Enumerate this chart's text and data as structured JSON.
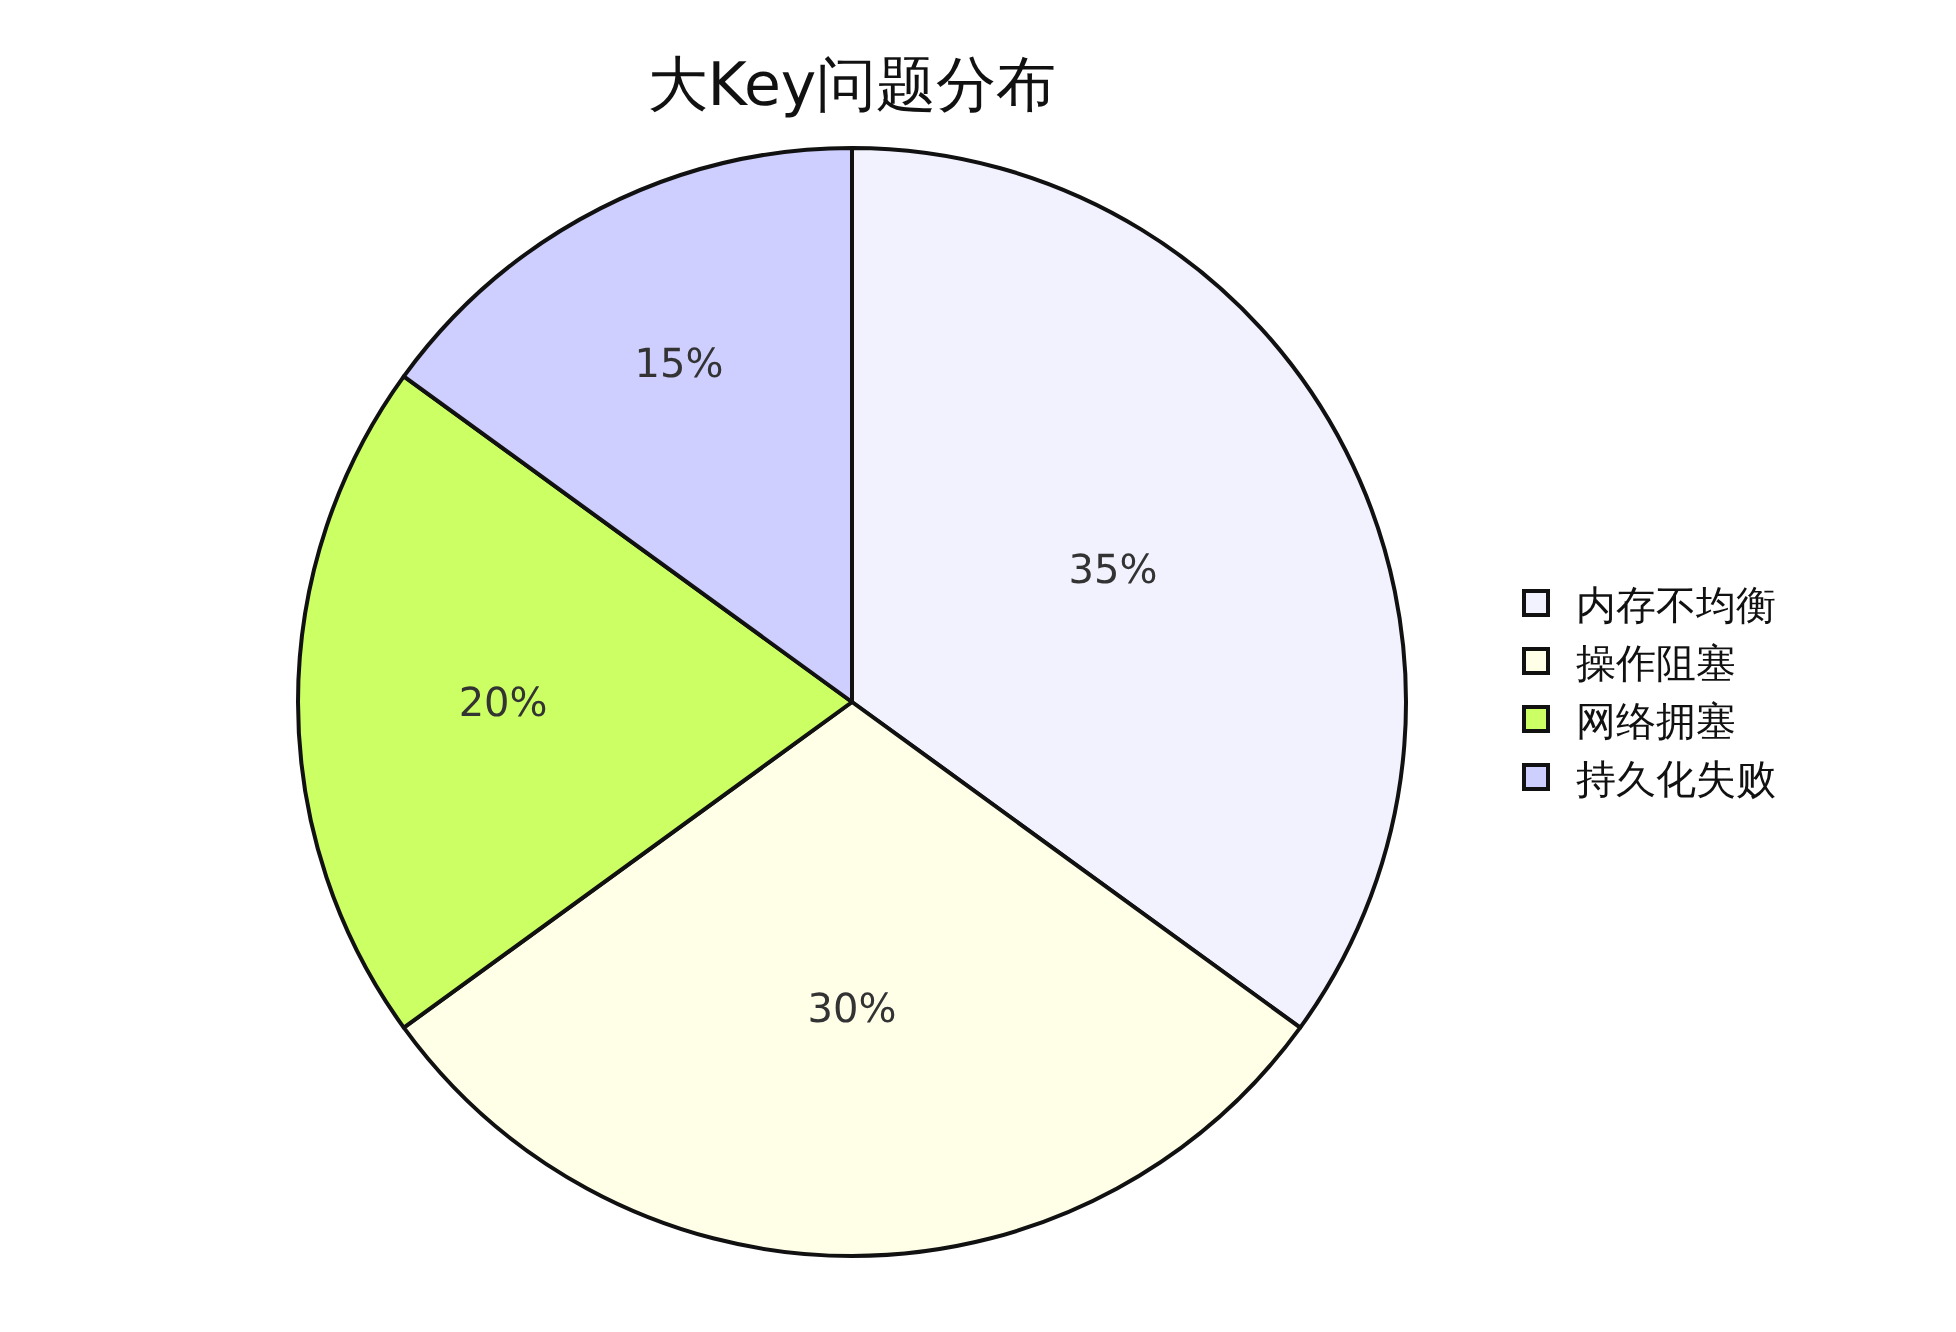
{
  "chart_data": {
    "type": "pie",
    "title": "大Key问题分布",
    "categories": [
      "内存不均衡",
      "操作阻塞",
      "网络拥塞",
      "持久化失败"
    ],
    "values": [
      35,
      30,
      20,
      15
    ],
    "value_labels": [
      "35%",
      "30%",
      "20%",
      "15%"
    ],
    "colors": [
      "#f2f2ff",
      "#ffffe8",
      "#cbff63",
      "#ceceff"
    ],
    "legend": "right"
  }
}
